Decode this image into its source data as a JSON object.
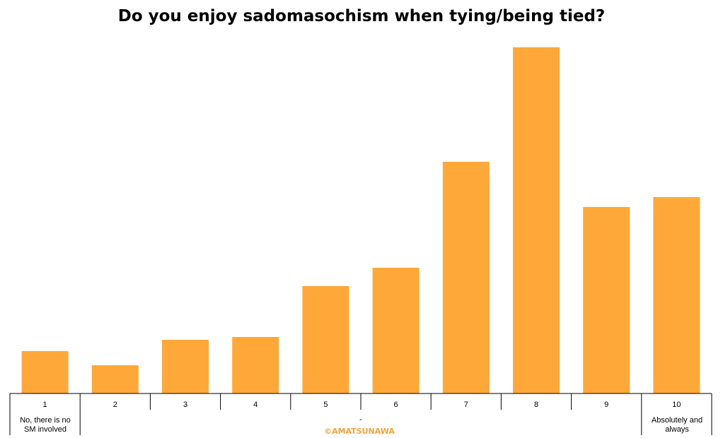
{
  "chart_data": {
    "type": "bar",
    "title": "Do you enjoy sadomasochism when tying/being tied?",
    "categories": [
      "1",
      "2",
      "3",
      "4",
      "5",
      "6",
      "7",
      "8",
      "9",
      "10"
    ],
    "values": [
      60,
      40,
      76,
      80,
      152,
      178,
      328,
      490,
      264,
      278
    ],
    "ylim": [
      0,
      490
    ],
    "grid": false,
    "legend": "none",
    "bar_color": "#FFA83A",
    "axis_labels": {
      "min": [
        "No, there is no",
        "SM involved"
      ],
      "mid": "-",
      "max": [
        "Absolutely and",
        "always"
      ]
    },
    "watermark": "©AMATSUNAWA",
    "watermark_color": "#F5A33B"
  }
}
